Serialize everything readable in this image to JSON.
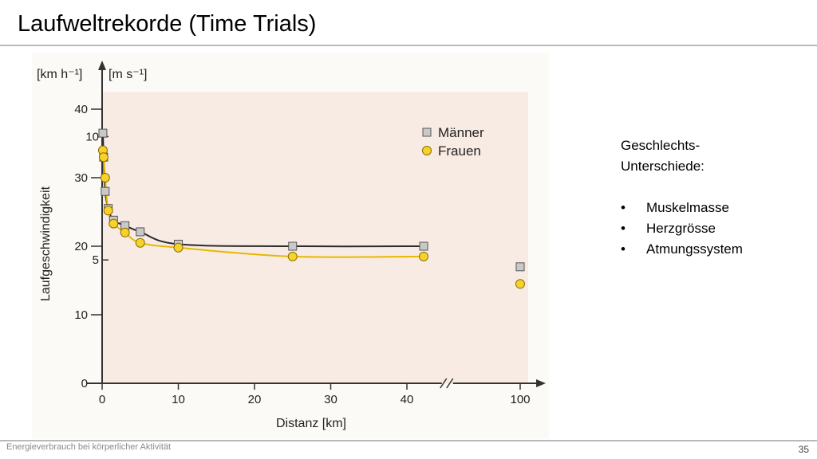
{
  "slide": {
    "title": "Laufweltrekorde (Time Trials)",
    "footer_text": "Energieverbrauch bei körperlicher Aktivität",
    "page_number": "35"
  },
  "side_text": {
    "heading": "Geschlechts-\nUnterschiede:",
    "bullets": [
      "Muskelmasse",
      "Herzgrösse",
      "Atmungssystem"
    ]
  },
  "colors": {
    "plot_bg": "#f8ebe4",
    "men_marker": "#c9c9c9",
    "men_line": "#2b2b2b",
    "women_marker": "#f6d22a",
    "women_line": "#e6b800",
    "axis": "#333333"
  },
  "chart_data": {
    "type": "scatter",
    "xlabel": "Distanz [km]",
    "ylabel": "Laufgeschwindigkeit",
    "y_unit_primary": "[km h⁻¹]",
    "y_unit_secondary": "[m s⁻¹]",
    "xlim": [
      0,
      50
    ],
    "ylim": [
      0,
      40
    ],
    "x_ticks": [
      0,
      10,
      20,
      30,
      40
    ],
    "x_tick_labels": [
      "0",
      "10",
      "20",
      "30",
      "40"
    ],
    "y_ticks": [
      0,
      10,
      20,
      30,
      40
    ],
    "y_tick_labels": [
      "0",
      "10",
      "20",
      "30",
      "40"
    ],
    "secondary_ticks": [
      {
        "value": 5,
        "label": "5"
      },
      {
        "value": 10,
        "label": "10"
      }
    ],
    "axis_break_after": 45,
    "extra_x": {
      "value": 100,
      "label": "100"
    },
    "grid": false,
    "legend_position": "top-right",
    "series": [
      {
        "name": "Männer",
        "marker": "square",
        "x": [
          0.1,
          0.2,
          0.4,
          0.8,
          1.5,
          3,
          5,
          10,
          25,
          42.2
        ],
        "y": [
          36.5,
          33,
          28,
          25.5,
          23.8,
          23,
          22.1,
          20.3,
          20,
          20
        ],
        "outlier": {
          "x": 100,
          "y": 17
        }
      },
      {
        "name": "Frauen",
        "marker": "circle",
        "x": [
          0.1,
          0.2,
          0.4,
          0.8,
          1.5,
          3,
          5,
          10,
          25,
          42.2
        ],
        "y": [
          34,
          33,
          30,
          25.2,
          23.3,
          22,
          20.5,
          19.8,
          18.5,
          18.5
        ],
        "outlier": {
          "x": 100,
          "y": 14.5
        }
      }
    ]
  }
}
